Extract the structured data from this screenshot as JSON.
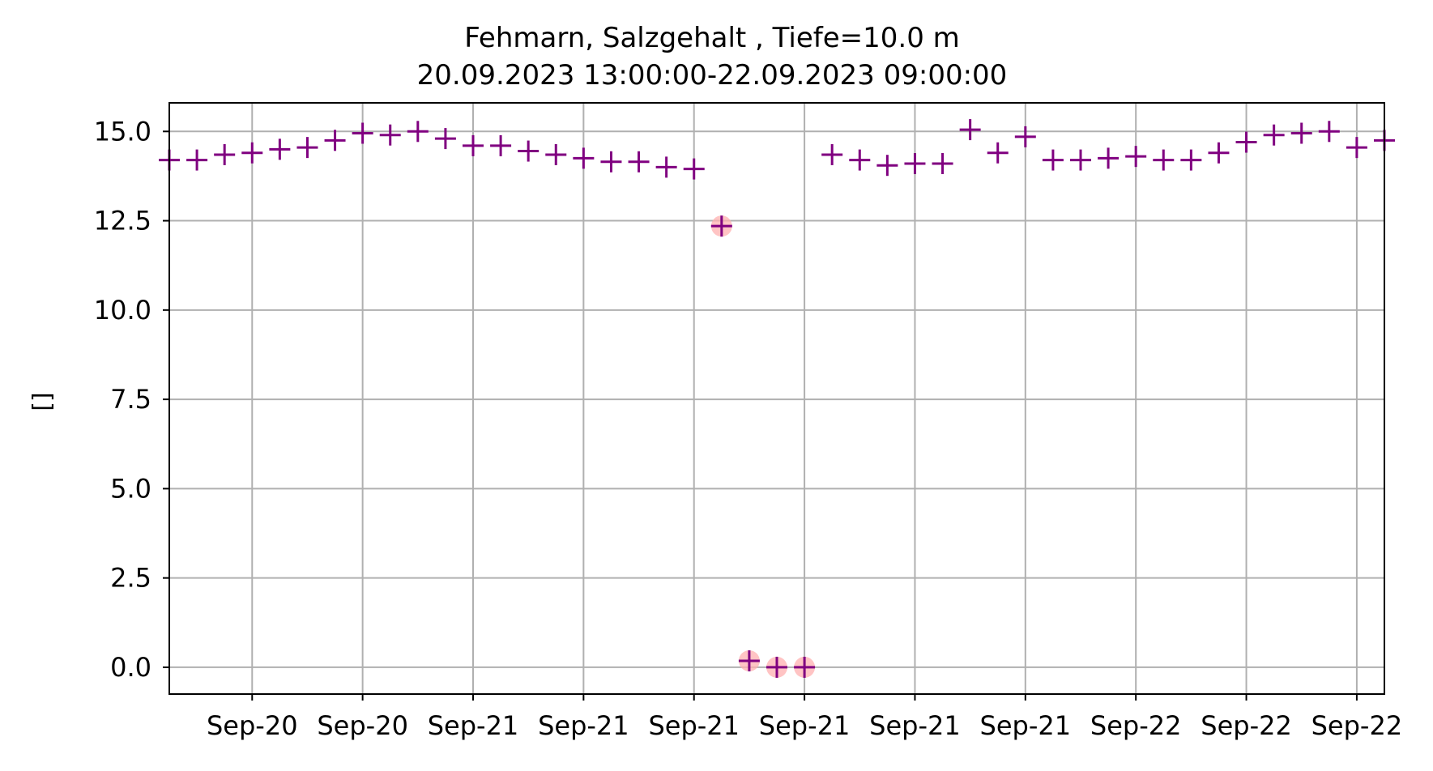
{
  "chart_data": {
    "type": "scatter",
    "title": "Fehmarn, Salzgehalt , Tiefe=10.0 m",
    "subtitle": "20.09.2023 13:00:00-22.09.2023 09:00:00",
    "xlabel": "",
    "ylabel": "[]",
    "x_range_hours": [
      13,
      57
    ],
    "ylim": [
      -0.75,
      15.8
    ],
    "yticks": [
      0.0,
      2.5,
      5.0,
      7.5,
      10.0,
      12.5,
      15.0
    ],
    "ytick_labels": [
      "0.0",
      "2.5",
      "5.0",
      "7.5",
      "10.0",
      "12.5",
      "15.0"
    ],
    "xticks_hours": [
      16,
      20,
      24,
      28,
      32,
      36,
      40,
      44,
      48,
      52,
      56
    ],
    "xtick_labels": [
      "Sep-20",
      "Sep-20",
      "Sep-21",
      "Sep-21",
      "Sep-21",
      "Sep-21",
      "Sep-21",
      "Sep-21",
      "Sep-22",
      "Sep-22",
      "Sep-22"
    ],
    "grid": true,
    "series": [
      {
        "marker": "plus",
        "color": "#800080",
        "x_hours": [
          13,
          14,
          15,
          16,
          17,
          18,
          19,
          20,
          21,
          22,
          23,
          24,
          25,
          26,
          27,
          28,
          29,
          30,
          31,
          32,
          33,
          34,
          35,
          36,
          37,
          38,
          39,
          40,
          41,
          42,
          43,
          44,
          45,
          46,
          47,
          48,
          49,
          50,
          51,
          52,
          53,
          54,
          55,
          56,
          57
        ],
        "values": [
          14.2,
          14.2,
          14.35,
          14.4,
          14.5,
          14.55,
          14.75,
          14.95,
          14.9,
          15.0,
          14.8,
          14.6,
          14.6,
          14.45,
          14.35,
          14.25,
          14.15,
          14.15,
          14.0,
          13.95,
          12.35,
          0.18,
          0.0,
          0.0,
          14.35,
          14.2,
          14.05,
          14.1,
          14.1,
          15.05,
          14.4,
          14.85,
          14.2,
          14.2,
          14.25,
          14.3,
          14.2,
          14.2,
          14.4,
          14.7,
          14.9,
          14.95,
          15.0,
          14.55,
          14.75
        ]
      }
    ],
    "flagged": {
      "marker": "circle",
      "color": "#ffb0b0",
      "x_hours": [
        33,
        34,
        35,
        36
      ],
      "values": [
        12.35,
        0.18,
        0.0,
        0.0
      ]
    }
  }
}
